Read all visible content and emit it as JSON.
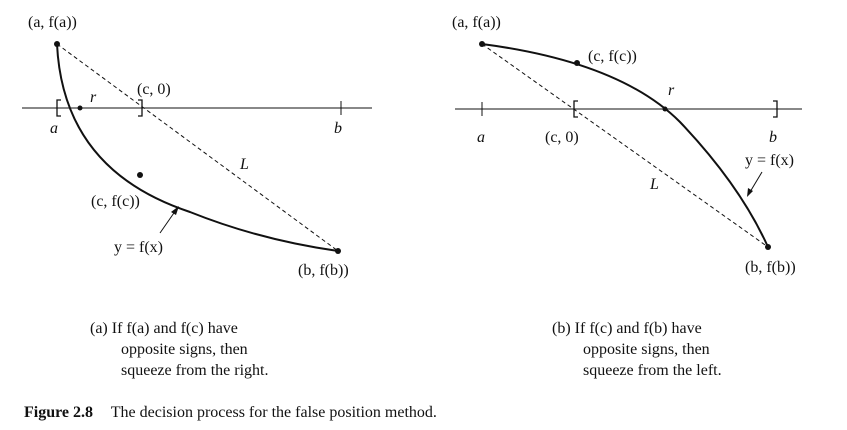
{
  "panel_a": {
    "labels": {
      "point_a": "(a, f(a))",
      "point_c0": "(c, 0)",
      "root": "r",
      "tick_a": "a",
      "tick_b": "b",
      "secant": "L",
      "point_c": "(c, f(c))",
      "curve": "y = f(x)",
      "point_b": "(b, f(b))"
    },
    "caption_lines": [
      "(a) If f(a) and f(c) have",
      "opposite signs, then",
      "squeeze from the right."
    ]
  },
  "panel_b": {
    "labels": {
      "point_a": "(a, f(a))",
      "point_c": "(c, f(c))",
      "root": "r",
      "tick_a": "a",
      "point_c0": "(c, 0)",
      "tick_b": "b",
      "curve": "y = f(x)",
      "secant": "L",
      "point_b": "(b, f(b))"
    },
    "caption_lines": [
      "(b) If f(c) and f(b) have",
      "opposite signs, then",
      "squeeze from the left."
    ]
  },
  "figure_caption": {
    "number": "Figure 2.8",
    "text": "The decision process for the false position method."
  }
}
